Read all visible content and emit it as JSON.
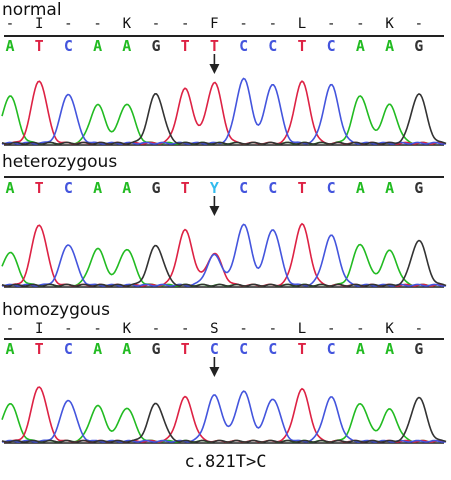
{
  "panels": [
    {
      "label": "normal",
      "amino_acids": [
        "-",
        "I",
        "-",
        "-",
        "K",
        "-",
        "-",
        "F",
        "-",
        "-",
        "L",
        "-",
        "-",
        "K",
        "-"
      ],
      "bases": [
        "A",
        "T",
        "C",
        "A",
        "A",
        "G",
        "T",
        "T",
        "C",
        "C",
        "T",
        "C",
        "A",
        "A",
        "G"
      ],
      "arrow_index": 7,
      "peaks": [
        {
          "base": "A",
          "h": 0.72
        },
        {
          "base": "T",
          "h": 0.95
        },
        {
          "base": "C",
          "h": 0.75
        },
        {
          "base": "A",
          "h": 0.58
        },
        {
          "base": "A",
          "h": 0.6
        },
        {
          "base": "G",
          "h": 0.75
        },
        {
          "base": "T",
          "h": 0.82
        },
        {
          "base": "T",
          "h": 0.92
        },
        {
          "base": "C",
          "h": 0.98
        },
        {
          "base": "C",
          "h": 0.9
        },
        {
          "base": "T",
          "h": 0.93
        },
        {
          "base": "C",
          "h": 0.88
        },
        {
          "base": "A",
          "h": 0.72
        },
        {
          "base": "A",
          "h": 0.58
        },
        {
          "base": "G",
          "h": 0.75
        }
      ]
    },
    {
      "label": "heterozygous",
      "bases": [
        "A",
        "T",
        "C",
        "A",
        "A",
        "G",
        "T",
        "Y",
        "C",
        "C",
        "T",
        "C",
        "A",
        "A",
        "G"
      ],
      "arrow_index": 7,
      "peaks": [
        {
          "base": "A",
          "h": 0.5
        },
        {
          "base": "T",
          "h": 0.92
        },
        {
          "base": "C",
          "h": 0.62
        },
        {
          "base": "A",
          "h": 0.55
        },
        {
          "base": "A",
          "h": 0.55
        },
        {
          "base": "G",
          "h": 0.6
        },
        {
          "base": "T",
          "h": 0.83
        },
        {
          "base": "Y",
          "h": 0.48
        },
        {
          "base": "C",
          "h": 0.92
        },
        {
          "base": "C",
          "h": 0.85
        },
        {
          "base": "T",
          "h": 0.92
        },
        {
          "base": "C",
          "h": 0.75
        },
        {
          "base": "A",
          "h": 0.62
        },
        {
          "base": "A",
          "h": 0.52
        },
        {
          "base": "G",
          "h": 0.68
        }
      ]
    },
    {
      "label": "homozygous",
      "amino_acids": [
        "-",
        "I",
        "-",
        "-",
        "K",
        "-",
        "-",
        "S",
        "-",
        "-",
        "L",
        "-",
        "-",
        "K",
        "-"
      ],
      "bases": [
        "A",
        "T",
        "C",
        "A",
        "A",
        "G",
        "T",
        "C",
        "C",
        "C",
        "T",
        "C",
        "A",
        "A",
        "G"
      ],
      "arrow_index": 7,
      "peaks": [
        {
          "base": "A",
          "h": 0.62
        },
        {
          "base": "T",
          "h": 0.9
        },
        {
          "base": "C",
          "h": 0.68
        },
        {
          "base": "A",
          "h": 0.58
        },
        {
          "base": "A",
          "h": 0.55
        },
        {
          "base": "G",
          "h": 0.62
        },
        {
          "base": "T",
          "h": 0.72
        },
        {
          "base": "C",
          "h": 0.75
        },
        {
          "base": "C",
          "h": 0.82
        },
        {
          "base": "C",
          "h": 0.7
        },
        {
          "base": "T",
          "h": 0.85
        },
        {
          "base": "C",
          "h": 0.72
        },
        {
          "base": "A",
          "h": 0.62
        },
        {
          "base": "A",
          "h": 0.52
        },
        {
          "base": "G",
          "h": 0.72
        }
      ]
    }
  ],
  "colors": {
    "A": "#22bb22",
    "T": "#dd2244",
    "C": "#4455dd",
    "G": "#333333",
    "Y": "#33bbee",
    "arrow": "#222222"
  },
  "caption": "c.821T>C"
}
